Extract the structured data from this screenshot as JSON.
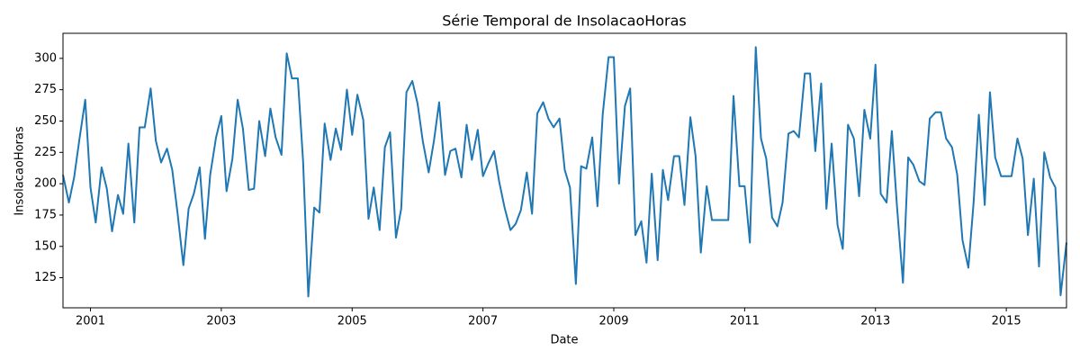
{
  "chart_data": {
    "type": "line",
    "title": "Série Temporal de InsolacaoHoras",
    "x_label": "Date",
    "y_label": "InsolacaoHoras",
    "x": [
      2000.58,
      2000.67,
      2000.75,
      2000.83,
      2000.92,
      2001,
      2001.08,
      2001.17,
      2001.25,
      2001.33,
      2001.42,
      2001.5,
      2001.58,
      2001.67,
      2001.75,
      2001.83,
      2001.92,
      2002,
      2002.08,
      2002.17,
      2002.25,
      2002.33,
      2002.42,
      2002.5,
      2002.58,
      2002.67,
      2002.75,
      2002.83,
      2002.92,
      2003,
      2003.08,
      2003.17,
      2003.25,
      2003.33,
      2003.42,
      2003.5,
      2003.58,
      2003.67,
      2003.75,
      2003.83,
      2003.92,
      2004,
      2004.08,
      2004.17,
      2004.25,
      2004.33,
      2004.42,
      2004.5,
      2004.58,
      2004.67,
      2004.75,
      2004.83,
      2004.92,
      2005,
      2005.08,
      2005.17,
      2005.25,
      2005.33,
      2005.42,
      2005.5,
      2005.58,
      2005.67,
      2005.75,
      2005.83,
      2005.92,
      2006,
      2006.08,
      2006.17,
      2006.25,
      2006.33,
      2006.42,
      2006.5,
      2006.58,
      2006.67,
      2006.75,
      2006.83,
      2006.92,
      2007,
      2007.08,
      2007.17,
      2007.25,
      2007.33,
      2007.42,
      2007.5,
      2007.58,
      2007.67,
      2007.75,
      2007.83,
      2007.92,
      2008,
      2008.08,
      2008.17,
      2008.25,
      2008.33,
      2008.42,
      2008.5,
      2008.58,
      2008.67,
      2008.75,
      2008.83,
      2008.92,
      2009,
      2009.08,
      2009.17,
      2009.25,
      2009.33,
      2009.42,
      2009.5,
      2009.58,
      2009.67,
      2009.75,
      2009.83,
      2009.92,
      2010,
      2010.08,
      2010.17,
      2010.25,
      2010.33,
      2010.42,
      2010.5,
      2010.58,
      2010.67,
      2010.75,
      2010.83,
      2010.92,
      2011,
      2011.08,
      2011.17,
      2011.25,
      2011.33,
      2011.42,
      2011.5,
      2011.58,
      2011.67,
      2011.75,
      2011.83,
      2011.92,
      2012,
      2012.08,
      2012.17,
      2012.25,
      2012.33,
      2012.42,
      2012.5,
      2012.58,
      2012.67,
      2012.75,
      2012.83,
      2012.92,
      2013,
      2013.08,
      2013.17,
      2013.25,
      2013.33,
      2013.42,
      2013.5,
      2013.58,
      2013.67,
      2013.75,
      2013.83,
      2013.92,
      2014,
      2014.08,
      2014.17,
      2014.25,
      2014.33,
      2014.42,
      2014.5,
      2014.58,
      2014.67,
      2014.75,
      2014.83,
      2014.92,
      2015,
      2015.08,
      2015.17,
      2015.25,
      2015.33,
      2015.42,
      2015.5,
      2015.58,
      2015.67,
      2015.75,
      2015.83,
      2015.92
    ],
    "series": [
      {
        "name": "InsolacaoHoras",
        "color": "#1f77b4",
        "values": [
          207,
          185,
          205,
          235,
          267,
          197,
          169,
          213,
          196,
          162,
          191,
          176,
          232,
          169,
          245,
          245,
          276,
          234,
          217,
          228,
          211,
          177,
          135,
          180,
          192,
          213,
          156,
          207,
          237,
          254,
          194,
          220,
          267,
          244,
          195,
          196,
          250,
          222,
          260,
          237,
          223,
          304,
          284,
          284,
          218,
          110,
          181,
          177,
          248,
          219,
          244,
          227,
          275,
          239,
          271,
          251,
          172,
          197,
          163,
          229,
          241,
          157,
          180,
          273,
          282,
          264,
          234,
          209,
          234,
          265,
          207,
          226,
          228,
          205,
          247,
          219,
          243,
          206,
          216,
          226,
          201,
          181,
          163,
          168,
          179,
          209,
          176,
          256,
          265,
          252,
          245,
          252,
          211,
          197,
          120,
          214,
          212,
          237,
          182,
          255,
          301,
          301,
          200,
          262,
          276,
          159,
          170,
          137,
          208,
          139,
          211,
          187,
          222,
          222,
          183,
          253,
          222,
          145,
          198,
          171,
          171,
          171,
          171,
          270,
          198,
          198,
          153,
          309,
          236,
          220,
          173,
          166,
          185,
          240,
          242,
          237,
          288,
          288,
          226,
          280,
          180,
          232,
          167,
          148,
          247,
          236,
          190,
          259,
          236,
          295,
          192,
          185,
          242,
          181,
          121,
          221,
          215,
          202,
          199,
          252,
          257,
          257,
          236,
          229,
          207,
          155,
          133,
          185,
          255,
          183,
          273,
          221,
          206,
          206,
          206,
          236,
          220,
          159,
          204,
          134,
          225,
          205,
          197,
          111,
          153
        ]
      }
    ],
    "xlim": [
      2000.58,
      2015.92
    ],
    "xticks": [
      2001,
      2003,
      2005,
      2007,
      2009,
      2011,
      2013,
      2015
    ],
    "ylim": [
      101,
      320
    ],
    "yticks": [
      125,
      150,
      175,
      200,
      225,
      250,
      275,
      300
    ]
  }
}
